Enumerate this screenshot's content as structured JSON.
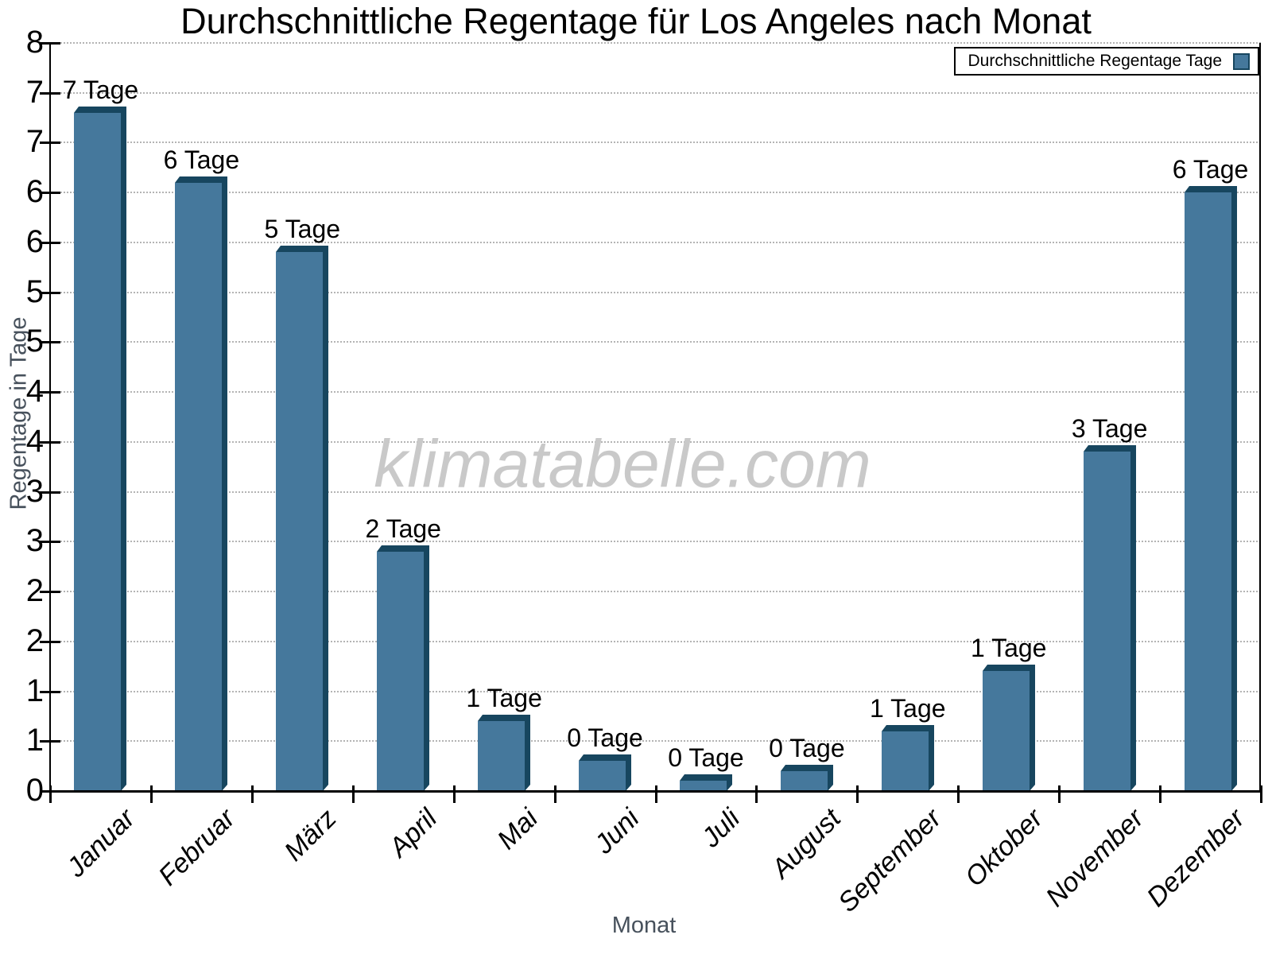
{
  "page": {
    "title": "Durchschnittliche Regentage für Los Angeles nach Monat"
  },
  "legend": {
    "label": "Durchschnittliche Regentage Tage"
  },
  "watermark": {
    "text": "klimatabelle.com"
  },
  "axes": {
    "x_label": "Monat",
    "y_label": "Regentage in Tage",
    "y_tick_labels_top_to_bottom": [
      "8",
      "7",
      "7",
      "6",
      "6",
      "5",
      "5",
      "4",
      "4",
      "3",
      "3",
      "2",
      "2",
      "1",
      "1",
      "0"
    ]
  },
  "chart_data": {
    "type": "bar",
    "title": "Durchschnittliche Regentage für Los Angeles nach Monat",
    "categories": [
      "Januar",
      "Februar",
      "März",
      "April",
      "Mai",
      "Juni",
      "Juli",
      "August",
      "September",
      "Oktober",
      "November",
      "Dezember"
    ],
    "values": [
      6.8,
      6.1,
      5.4,
      2.4,
      0.7,
      0.3,
      0.1,
      0.2,
      0.6,
      1.2,
      3.4,
      6.0
    ],
    "bar_labels": [
      "7 Tage",
      "6 Tage",
      "5 Tage",
      "2 Tage",
      "1 Tage",
      "0 Tage",
      "0 Tage",
      "0 Tage",
      "1 Tage",
      "1 Tage",
      "3 Tage",
      "6 Tage"
    ],
    "xlabel": "Monat",
    "ylabel": "Regentage in Tage",
    "ylim": [
      0,
      7.5
    ],
    "y_tick_step": 0.5,
    "y_tick_labels_are_rounded": true,
    "grid": true,
    "legend": [
      "Durchschnittliche Regentage Tage"
    ],
    "legend_position": "top-right",
    "colors": {
      "bar_front": "#45789C",
      "bar_shade": "#17465F",
      "grid": "#b4b4b4",
      "axis": "#000000",
      "axis_title_gray": "#47515C",
      "watermark_gray": "#c9c9c9"
    }
  }
}
